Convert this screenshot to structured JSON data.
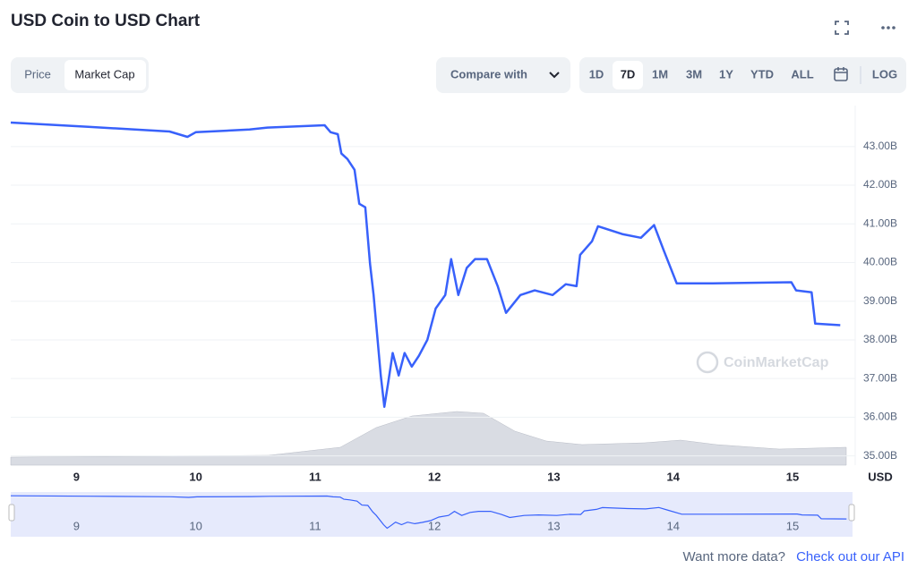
{
  "header": {
    "title": "USD Coin to USD Chart"
  },
  "tabs": [
    "Price",
    "Market Cap"
  ],
  "compare": "Compare with",
  "ranges": [
    "1D",
    "7D",
    "1M",
    "3M",
    "1Y",
    "YTD",
    "ALL"
  ],
  "log": "LOG",
  "watermark": "CoinMarketCap",
  "footer": {
    "text": "Want more data?",
    "link": "Check out our API"
  },
  "chart_data": {
    "type": "line",
    "ylabel": "USD",
    "color": "#3861fb",
    "x": [
      8.45,
      9.1,
      9.78,
      9.93,
      10.0,
      10.45,
      10.6,
      11.08,
      11.13,
      11.19,
      11.22,
      11.27,
      11.33,
      11.37,
      11.42,
      11.46,
      11.49,
      11.55,
      11.58,
      11.61,
      11.65,
      11.7,
      11.75,
      11.81,
      11.87,
      11.94,
      12.01,
      12.09,
      12.14,
      12.2,
      12.27,
      12.34,
      12.44,
      12.53,
      12.6,
      12.72,
      12.84,
      12.99,
      13.1,
      13.19,
      13.22,
      13.32,
      13.37,
      13.58,
      13.73,
      13.84,
      13.92,
      14.03,
      14.33,
      14.99,
      15.03,
      15.16,
      15.19,
      15.4
    ],
    "values": [
      43.62,
      43.51,
      43.39,
      43.25,
      43.37,
      43.44,
      43.49,
      43.55,
      43.37,
      43.32,
      42.82,
      42.68,
      42.4,
      41.52,
      41.43,
      39.97,
      39.16,
      37.08,
      36.27,
      36.85,
      37.66,
      37.08,
      37.66,
      37.31,
      37.59,
      38.0,
      38.81,
      39.16,
      40.09,
      39.16,
      39.86,
      40.09,
      40.09,
      39.39,
      38.7,
      39.16,
      39.28,
      39.16,
      39.44,
      39.39,
      40.2,
      40.55,
      40.94,
      40.73,
      40.64,
      40.97,
      40.32,
      39.46,
      39.46,
      39.49,
      39.28,
      39.23,
      38.42,
      38.38
    ],
    "xlim": [
      8.45,
      15.45
    ],
    "xticks": [
      9,
      10,
      11,
      12,
      13,
      14,
      15
    ],
    "ylim": [
      34.76,
      44.06
    ],
    "yticks": [
      {
        "value": 35,
        "label": "35.00B"
      },
      {
        "value": 36,
        "label": "36.00B"
      },
      {
        "value": 37,
        "label": "37.00B"
      },
      {
        "value": 38,
        "label": "38.00B"
      },
      {
        "value": 39,
        "label": "39.00B"
      },
      {
        "value": 40,
        "label": "40.00B"
      },
      {
        "value": 41,
        "label": "41.00B"
      },
      {
        "value": 42,
        "label": "42.00B"
      },
      {
        "value": 43,
        "label": "43.00B"
      }
    ],
    "grid": true
  }
}
